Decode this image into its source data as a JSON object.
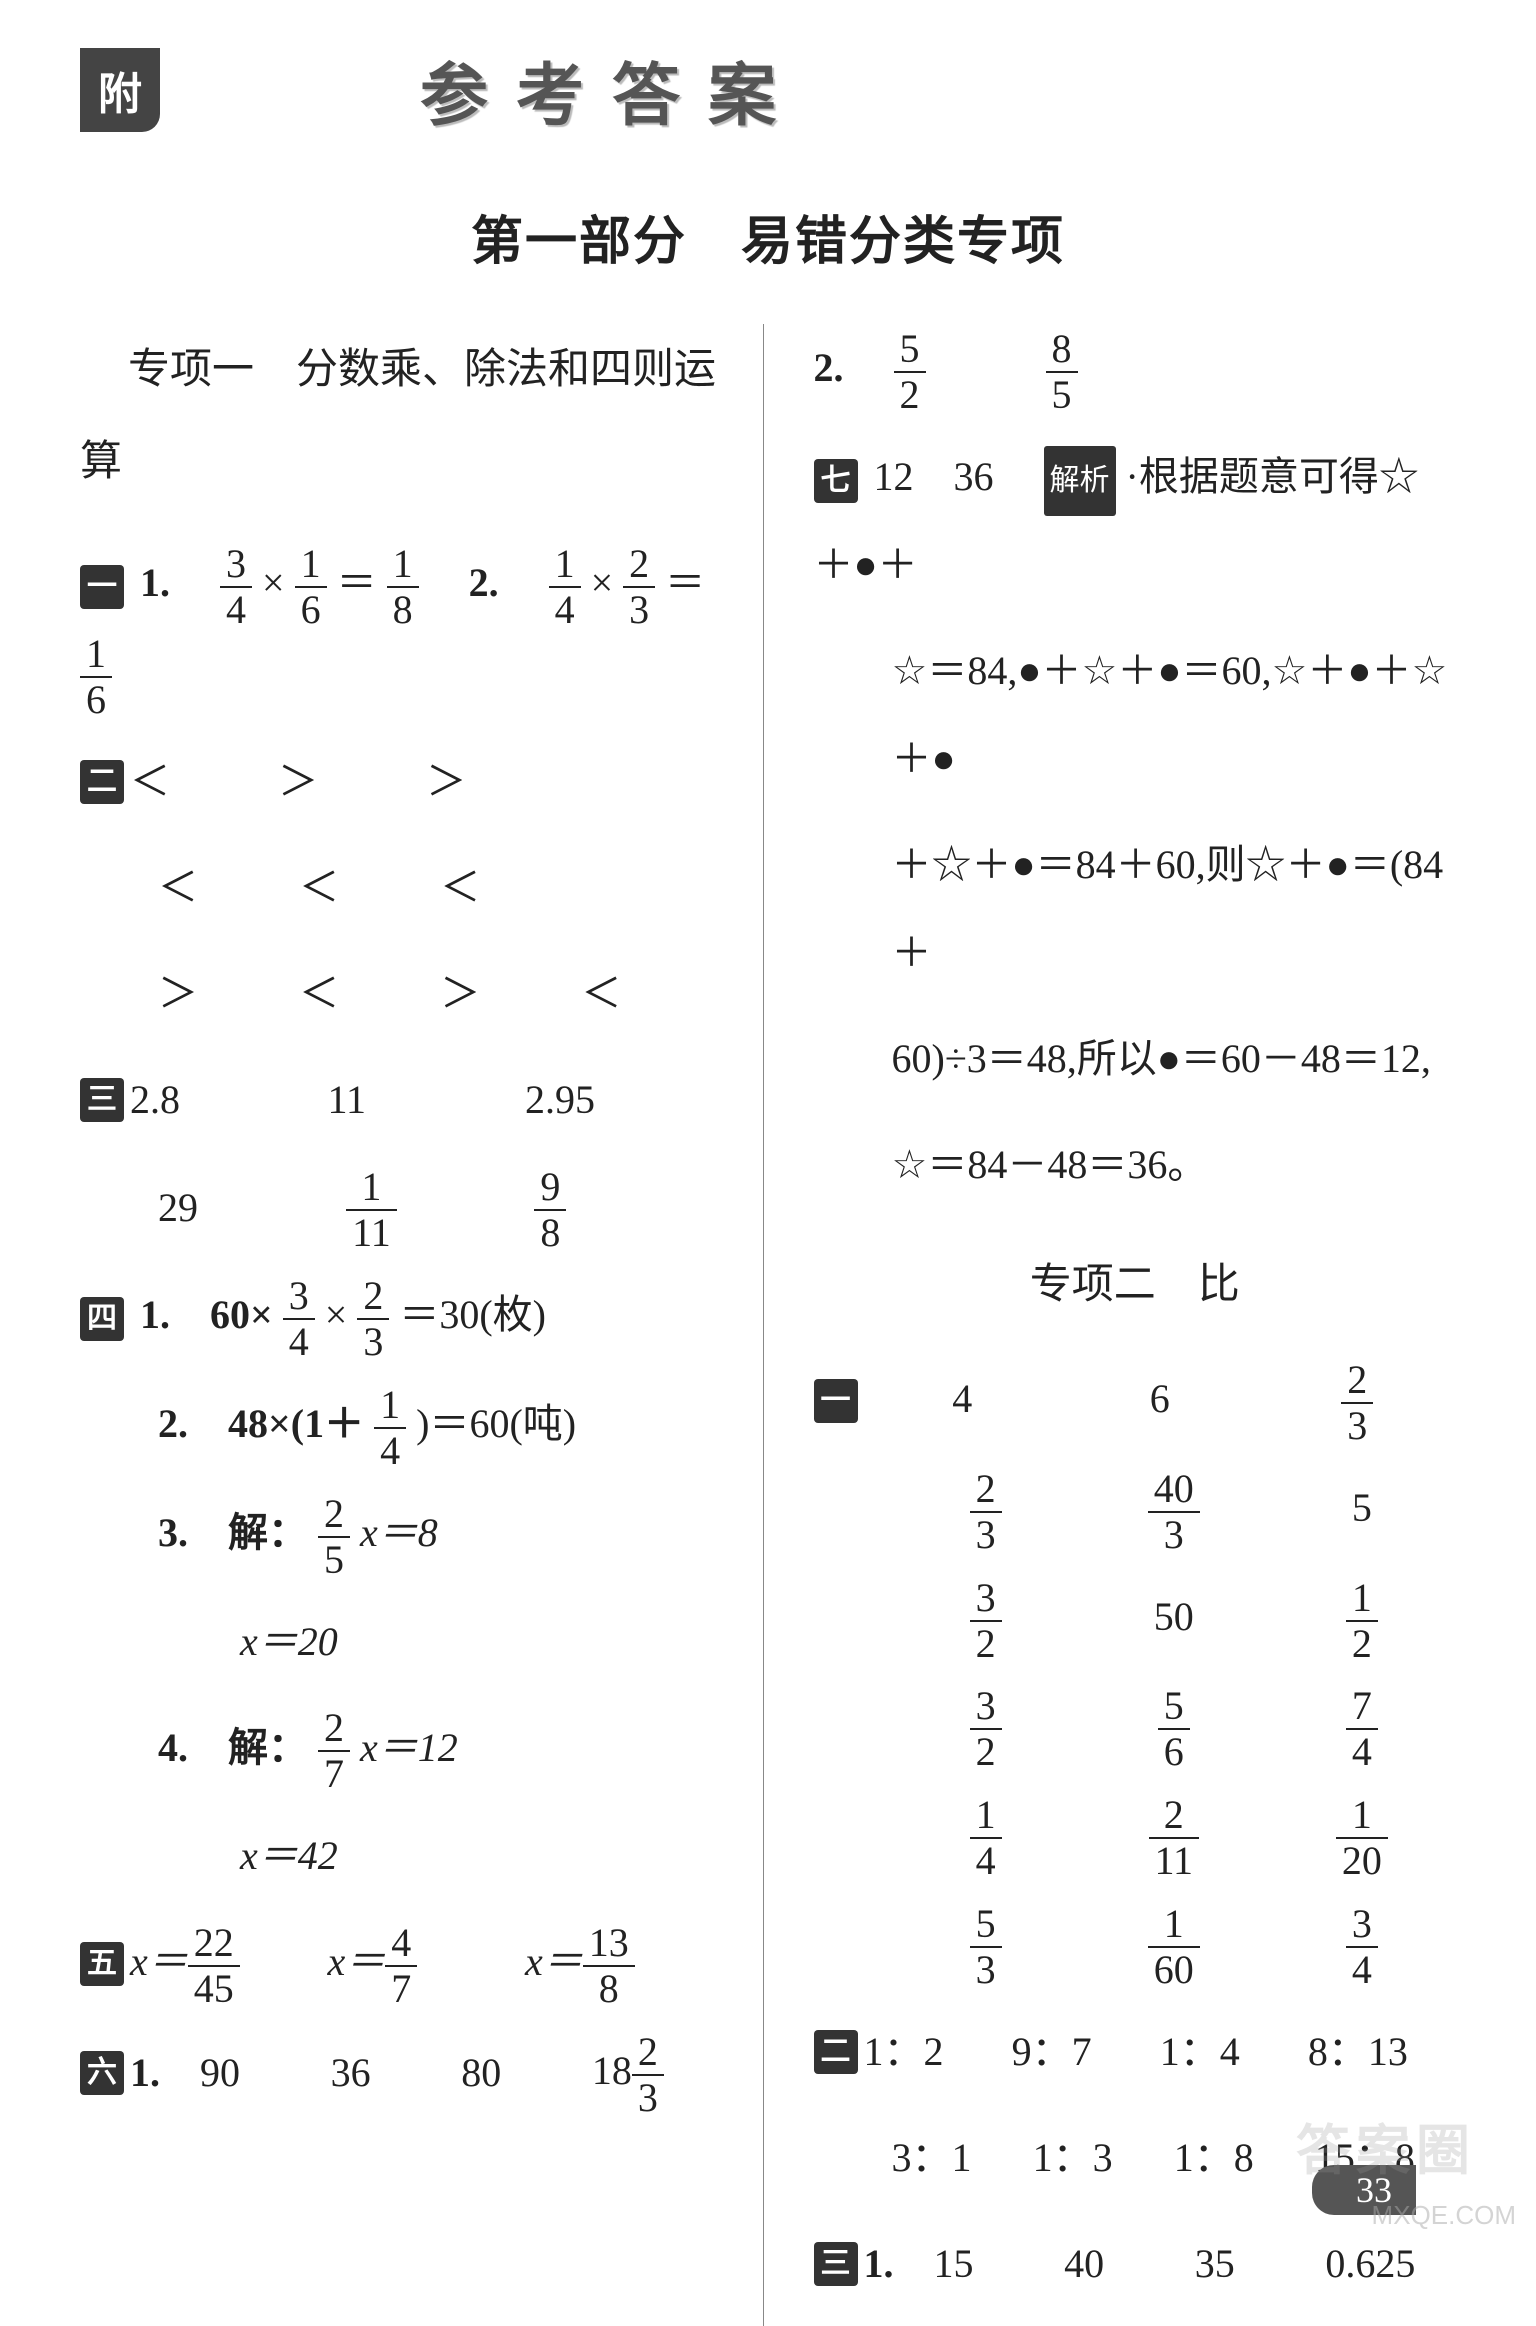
{
  "header": {
    "tab": "附",
    "title": "参考答案"
  },
  "part_title": "第一部分　易错分类专项",
  "left": {
    "topic1": "专项一　分数乘、除法和四则运算",
    "b1": "一",
    "q1_1_pre": "1.　",
    "q1_1_a_n": "3",
    "q1_1_a_d": "4",
    "q1_1_b_n": "1",
    "q1_1_b_d": "6",
    "q1_1_c_n": "1",
    "q1_1_c_d": "8",
    "q1_2_pre": "2.　",
    "q1_2_a_n": "1",
    "q1_2_a_d": "4",
    "q1_2_b_n": "2",
    "q1_2_b_d": "3",
    "q1_2_c_n": "1",
    "q1_2_c_d": "6",
    "b2": "二",
    "cmp": [
      [
        "＜",
        "＞",
        "＞",
        ""
      ],
      [
        "＜",
        "＜",
        "＜",
        ""
      ],
      [
        "＞",
        "＜",
        "＞",
        "＜"
      ]
    ],
    "b3": "三",
    "r3a": [
      "2.8",
      "11",
      "2.95"
    ],
    "r3b_1": "29",
    "r3b_2_n": "1",
    "r3b_2_d": "11",
    "r3b_3_n": "9",
    "r3b_3_d": "8",
    "b4": "四",
    "q4_1_pre": "1.　60×",
    "q4_1_a_n": "3",
    "q4_1_a_d": "4",
    "q4_1_b_n": "2",
    "q4_1_b_d": "3",
    "q4_1_post": "＝30(枚)",
    "q4_2_pre": "2.　48×(1＋",
    "q4_2_a_n": "1",
    "q4_2_a_d": "4",
    "q4_2_post": ")＝60(吨)",
    "q4_3_pre": "3.　解：",
    "q4_3_a_n": "2",
    "q4_3_a_d": "5",
    "q4_3_post": "x＝8",
    "q4_3_ans": "x＝20",
    "q4_4_pre": "4.　解：",
    "q4_4_a_n": "2",
    "q4_4_a_d": "7",
    "q4_4_post": "x＝12",
    "q4_4_ans": "x＝42",
    "b5": "五",
    "q5_1_n": "22",
    "q5_1_d": "45",
    "q5_2_n": "4",
    "q5_2_d": "7",
    "q5_3_n": "13",
    "q5_3_d": "8",
    "x_eq": "x＝",
    "b6": "六",
    "q6_pre": "1.　",
    "q6_vals": [
      "90",
      "36",
      "80"
    ],
    "q6_last_int": "18",
    "q6_last_n": "2",
    "q6_last_d": "3"
  },
  "right": {
    "q2_pre": "2.　",
    "q2_a_n": "5",
    "q2_a_d": "2",
    "q2_b_n": "8",
    "q2_b_d": "5",
    "b7": "七",
    "q7_nums": "12　36　",
    "analysis": "解析",
    "q7_text1": "·根据题意可得☆＋●＋",
    "q7_text2": "☆＝84,●＋☆＋●＝60,☆＋●＋☆＋●",
    "q7_text3": "＋☆＋●＝84＋60,则☆＋●＝(84＋",
    "q7_text4": "60)÷3＝48,所以●＝60－48＝12,",
    "q7_text5": "☆＝84－48＝36。",
    "topic2": "专项二　比",
    "b1": "一",
    "g1": {
      "r1": [
        "4",
        "6",
        {
          "n": "2",
          "d": "3"
        }
      ],
      "r2": [
        {
          "n": "2",
          "d": "3"
        },
        {
          "n": "40",
          "d": "3"
        },
        "5"
      ],
      "r3": [
        {
          "n": "3",
          "d": "2"
        },
        "50",
        {
          "n": "1",
          "d": "2"
        }
      ],
      "r4": [
        {
          "n": "3",
          "d": "2"
        },
        {
          "n": "5",
          "d": "6"
        },
        {
          "n": "7",
          "d": "4"
        }
      ],
      "r5": [
        {
          "n": "1",
          "d": "4"
        },
        {
          "n": "2",
          "d": "11"
        },
        {
          "n": "1",
          "d": "20"
        }
      ],
      "r6": [
        {
          "n": "5",
          "d": "3"
        },
        {
          "n": "1",
          "d": "60"
        },
        {
          "n": "3",
          "d": "4"
        }
      ]
    },
    "b2": "二",
    "ratios_r1": [
      "1：2",
      "9：7",
      "1：4",
      "8：13"
    ],
    "ratios_r2": [
      "3：1",
      "1：3",
      "1：8",
      "15：8"
    ],
    "b3": "三",
    "q3_pre": "1.　",
    "q3_vals": [
      "15",
      "40",
      "35",
      "0.625"
    ]
  },
  "page_num": "33",
  "watermark": "MXQE.COM",
  "wm_cn": "答案圈"
}
